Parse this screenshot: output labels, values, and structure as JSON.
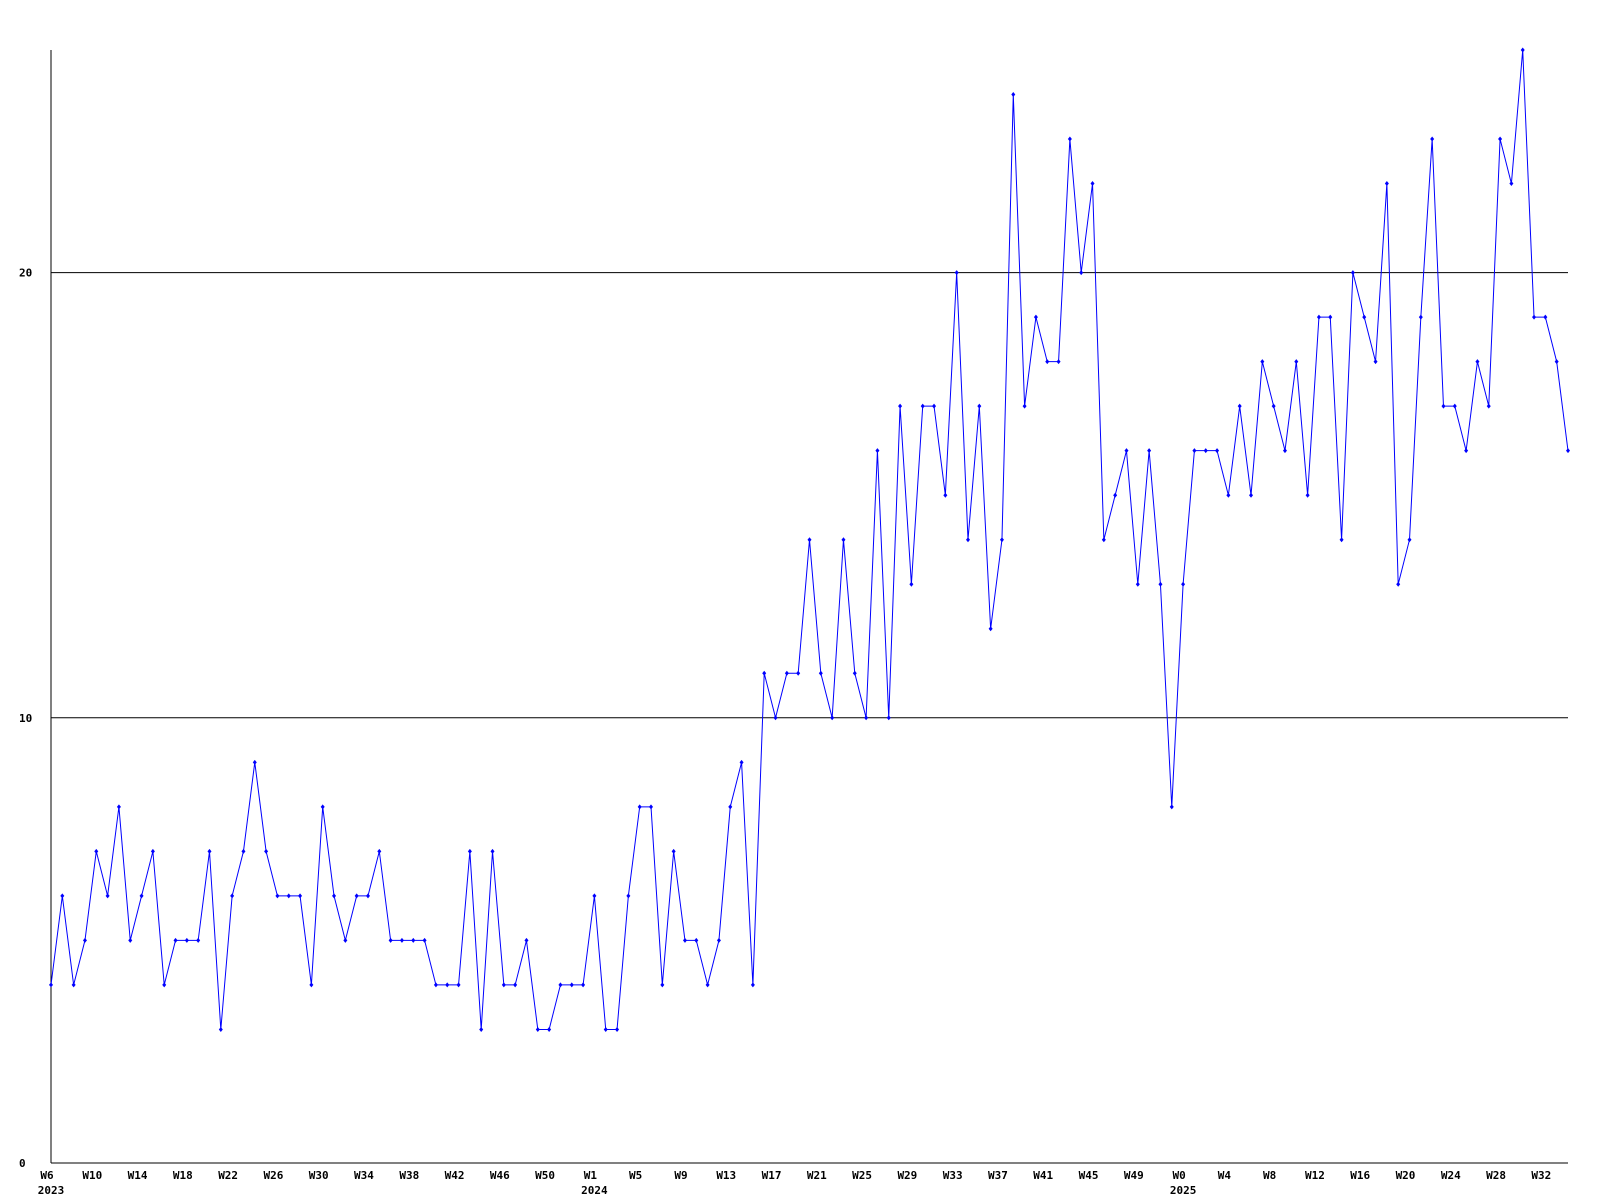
{
  "chart_data": {
    "type": "line",
    "categories": [
      "W6",
      null,
      null,
      null,
      "W10",
      null,
      null,
      null,
      "W14",
      null,
      null,
      null,
      "W18",
      null,
      null,
      null,
      "W22",
      null,
      null,
      null,
      "W26",
      null,
      null,
      null,
      "W30",
      null,
      null,
      null,
      "W34",
      null,
      null,
      null,
      "W38",
      null,
      null,
      null,
      "W42",
      null,
      null,
      null,
      "W46",
      null,
      null,
      null,
      "W50",
      null,
      null,
      null,
      "W1",
      null,
      null,
      null,
      "W5",
      null,
      null,
      null,
      "W9",
      null,
      null,
      null,
      "W13",
      null,
      null,
      null,
      "W17",
      null,
      null,
      null,
      "W21",
      null,
      null,
      null,
      "W25",
      null,
      null,
      null,
      "W29",
      null,
      null,
      null,
      "W33",
      null,
      null,
      null,
      "W37",
      null,
      null,
      null,
      "W41",
      null,
      null,
      null,
      "W45",
      null,
      null,
      null,
      "W49",
      null,
      null,
      null,
      "W0",
      null,
      null,
      null,
      "W4",
      null,
      null,
      null,
      "W8",
      null,
      null,
      null,
      "W12",
      null,
      null,
      null,
      "W16",
      null,
      null,
      null,
      "W20",
      null,
      null,
      null,
      "W24",
      null,
      null,
      null,
      "W28",
      null,
      null,
      null,
      "W32",
      null,
      null
    ],
    "year_labels": [
      "2023",
      null,
      null,
      null,
      null,
      null,
      null,
      null,
      null,
      null,
      null,
      null,
      null,
      null,
      null,
      null,
      null,
      null,
      null,
      null,
      null,
      null,
      null,
      null,
      null,
      null,
      null,
      null,
      null,
      null,
      null,
      null,
      null,
      null,
      null,
      null,
      null,
      null,
      null,
      null,
      null,
      null,
      null,
      null,
      null,
      null,
      null,
      null,
      "2024",
      null,
      null,
      null,
      null,
      null,
      null,
      null,
      null,
      null,
      null,
      null,
      null,
      null,
      null,
      null,
      null,
      null,
      null,
      null,
      null,
      null,
      null,
      null,
      null,
      null,
      null,
      null,
      null,
      null,
      null,
      null,
      null,
      null,
      null,
      null,
      null,
      null,
      null,
      null,
      null,
      null,
      null,
      null,
      null,
      null,
      null,
      null,
      null,
      null,
      null,
      null,
      "2025",
      null,
      null,
      null,
      null,
      null,
      null,
      null,
      null,
      null,
      null,
      null,
      null,
      null,
      null,
      null,
      null,
      null,
      null,
      null,
      null,
      null,
      null,
      null,
      null,
      null,
      null,
      null,
      null,
      null,
      null,
      null,
      null,
      null,
      null
    ],
    "series": [
      {
        "color": "#0000ff",
        "values": [
          4,
          6,
          4,
          5,
          7,
          6,
          8,
          5,
          6,
          7,
          4,
          5,
          5,
          5,
          7,
          3,
          6,
          7,
          9,
          7,
          6,
          6,
          6,
          4,
          8,
          6,
          5,
          6,
          6,
          7,
          5,
          5,
          5,
          5,
          4,
          4,
          4,
          7,
          3,
          7,
          4,
          4,
          5,
          3,
          3,
          4,
          4,
          4,
          6,
          3,
          3,
          6,
          8,
          8,
          4,
          7,
          5,
          5,
          4,
          5,
          8,
          9,
          4,
          11,
          10,
          11,
          11,
          14,
          11,
          10,
          14,
          11,
          10,
          16,
          10,
          17,
          13,
          17,
          17,
          15,
          20,
          14,
          17,
          12,
          14,
          24,
          17,
          19,
          18,
          18,
          23,
          20,
          22,
          14,
          15,
          16,
          13,
          16,
          13,
          8,
          13,
          16,
          16,
          16,
          15,
          17,
          15,
          18,
          17,
          16,
          18,
          15,
          19,
          19,
          14,
          20,
          19,
          18,
          22,
          13,
          14,
          19,
          23,
          17,
          17,
          16,
          18,
          17,
          23,
          22,
          25,
          19,
          19,
          18,
          16
        ]
      }
    ],
    "ylim": [
      0,
      25
    ],
    "yticks": [
      0,
      10,
      20
    ],
    "grid": true
  }
}
